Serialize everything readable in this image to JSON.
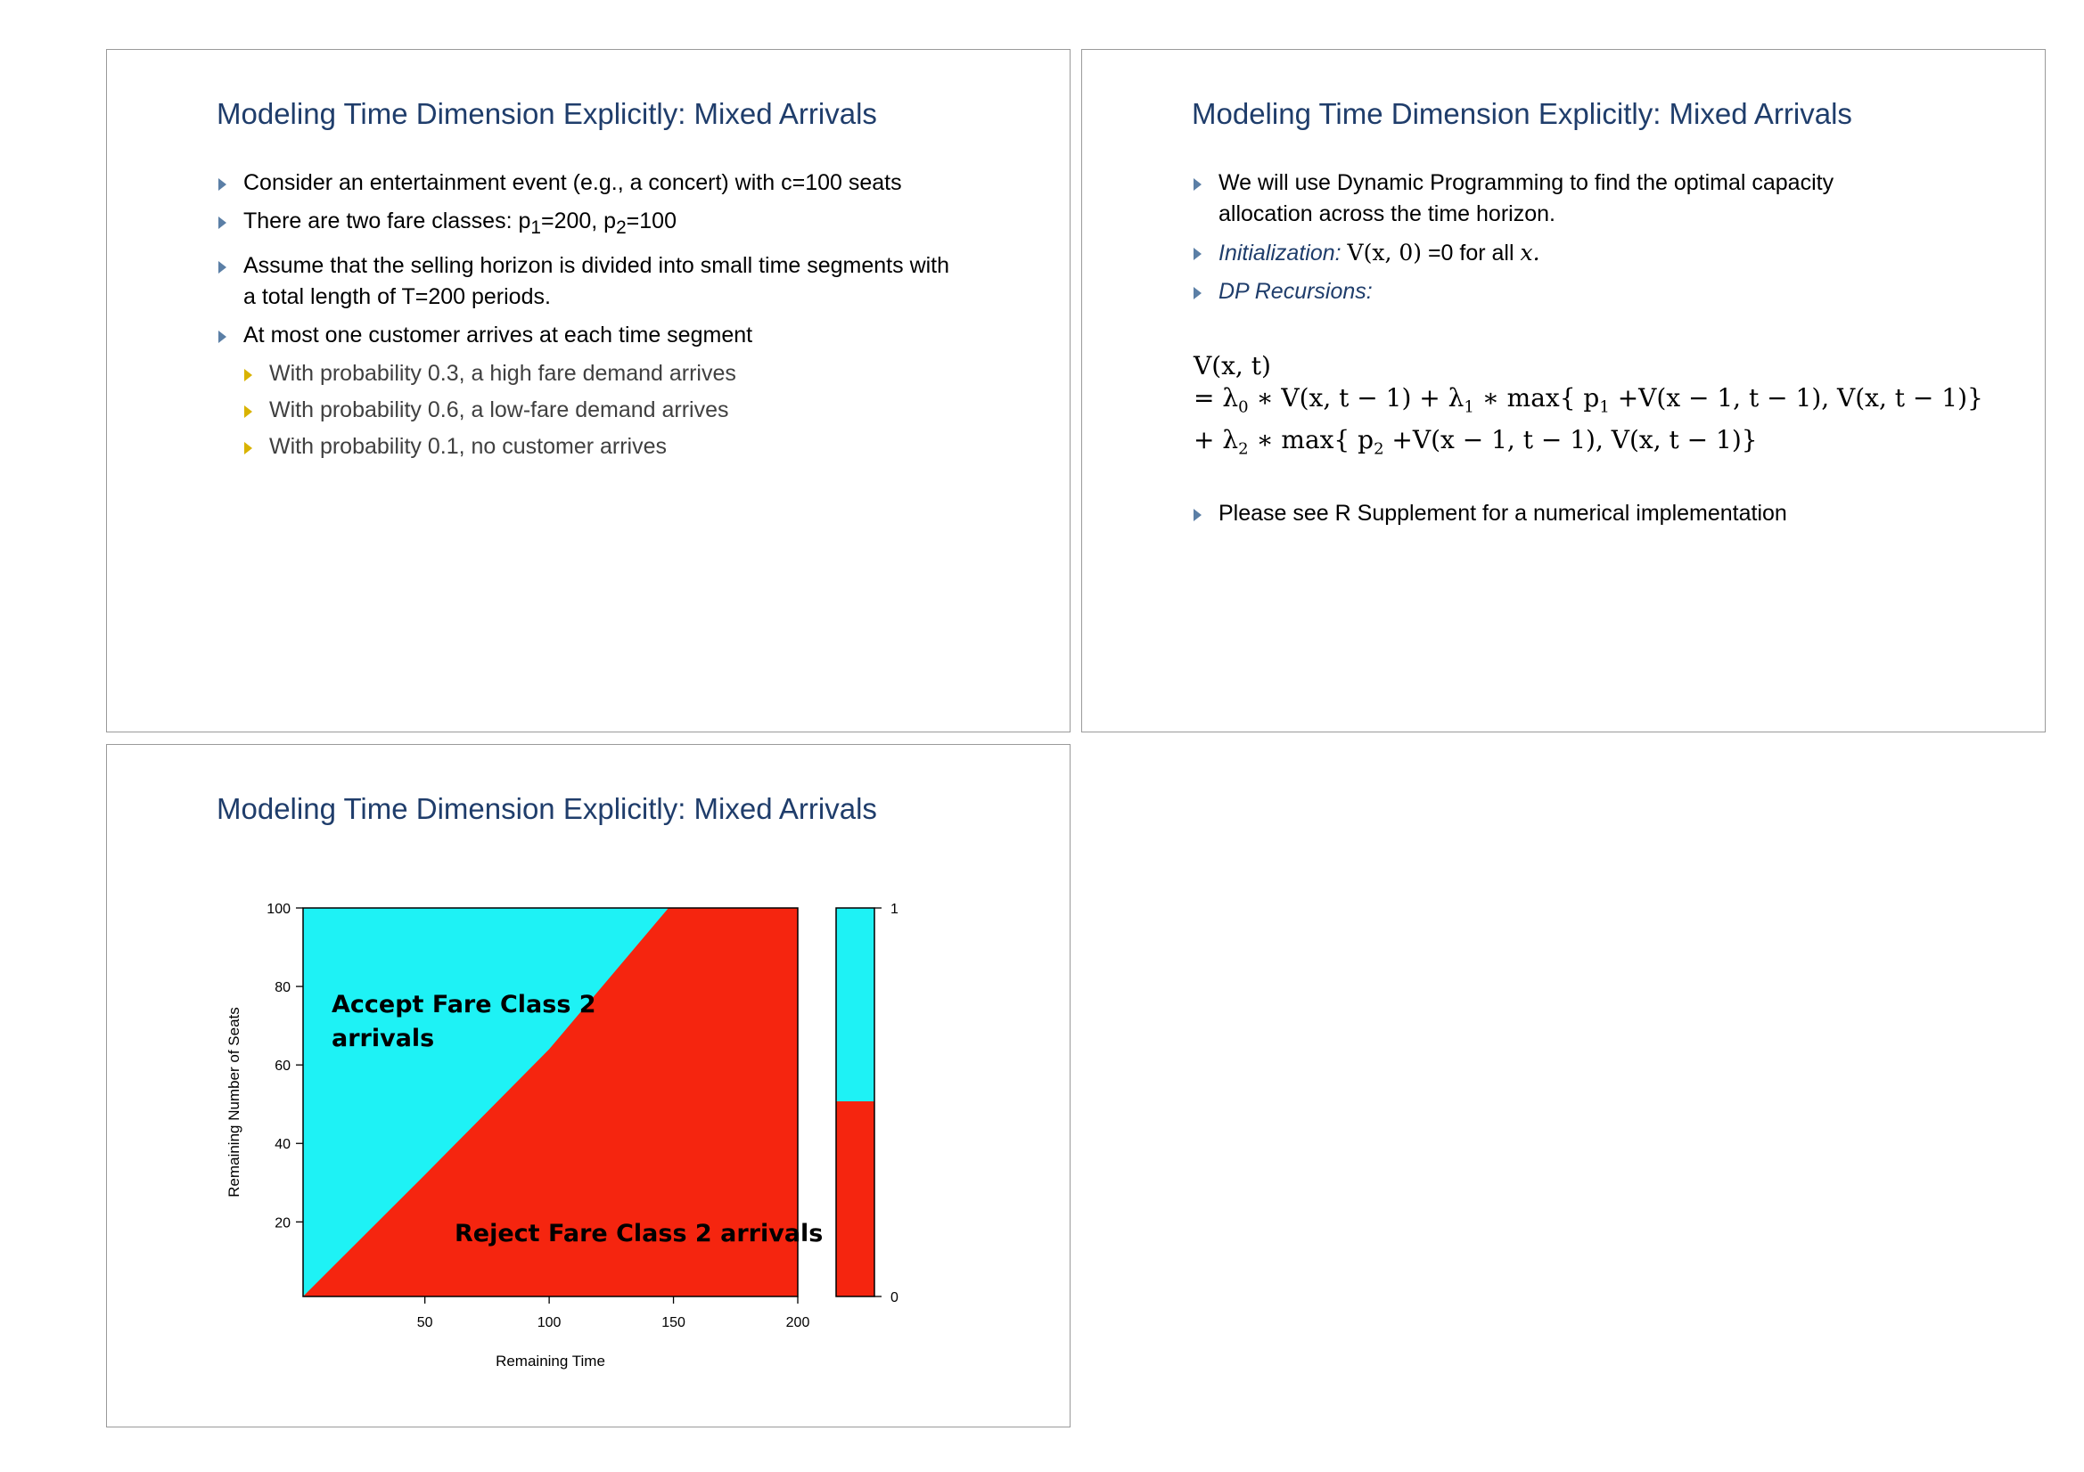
{
  "slides": [
    {
      "title": "Modeling Time Dimension Explicitly: Mixed Arrivals",
      "bullets": [
        {
          "pre": "Consider an entertainment event (e.g., a concert) with c=100 seats"
        },
        {
          "pre": "There are two fare classes: p",
          "s1": "1",
          "mid": "=200, p",
          "s2": "2",
          "post": "=100"
        },
        {
          "line1": "Assume that the selling horizon is divided into small time segments with",
          "line2": "a total length of T=200 periods."
        },
        {
          "pre": "At most one customer arrives at each time segment"
        }
      ],
      "sub_bullets": [
        "With probability 0.3, a high fare demand arrives",
        "With probability 0.6, a low-fare demand arrives",
        "With probability 0.1, no customer arrives"
      ]
    },
    {
      "title": "Modeling Time Dimension Explicitly: Mixed Arrivals",
      "b1_line1": "We will use Dynamic Programming to find the optimal capacity",
      "b1_line2": "allocation across the time horizon.",
      "init_label": "Initialization:",
      "init_math": "V(x, 0)",
      "init_rest": " =0 for all ",
      "init_var": "x.",
      "dp_label": "DP Recursions:",
      "formula": {
        "line1": "V(x, t)",
        "l2a": "= λ",
        "l2s0": "0",
        "l2b": " ∗ V(x, t − 1) +  λ",
        "l2s1": "1",
        "l2c": " ∗ max{ p",
        "l2s2": "1",
        "l2d": " +V(x − 1, t − 1), V(x, t − 1)}",
        "l3a": "+ λ",
        "l3s0": "2",
        "l3b": " ∗ max{ p",
        "l3s1": "2",
        "l3c": " +V(x − 1, t − 1), V(x, t − 1)}"
      },
      "b_last": "Please see R Supplement for a numerical implementation"
    },
    {
      "title": "Modeling Time Dimension Explicitly: Mixed Arrivals"
    }
  ],
  "chart_data": {
    "type": "heatmap",
    "title": "",
    "xlabel": "Remaining Time",
    "ylabel": "Remaining Number of Seats",
    "xlim": [
      1,
      200
    ],
    "ylim": [
      1,
      100
    ],
    "x_ticks": [
      50,
      100,
      150,
      200
    ],
    "y_ticks": [
      20,
      40,
      60,
      80,
      100
    ],
    "boundary": [
      {
        "x": 1,
        "y": 1
      },
      {
        "x": 50,
        "y": 32
      },
      {
        "x": 100,
        "y": 64
      },
      {
        "x": 148,
        "y": 100
      }
    ],
    "regions": [
      {
        "label_line1": "Accept Fare Class 2",
        "label_line2": "arrivals",
        "color": "#1ef2f5",
        "value": 1
      },
      {
        "label_line1": "Reject Fare Class 2 arrivals",
        "color": "#f5250f",
        "value": 0
      }
    ],
    "colorbar": {
      "ticks": [
        "1",
        "0"
      ],
      "high_color": "#1ef2f5",
      "low_color": "#f5250f"
    }
  }
}
